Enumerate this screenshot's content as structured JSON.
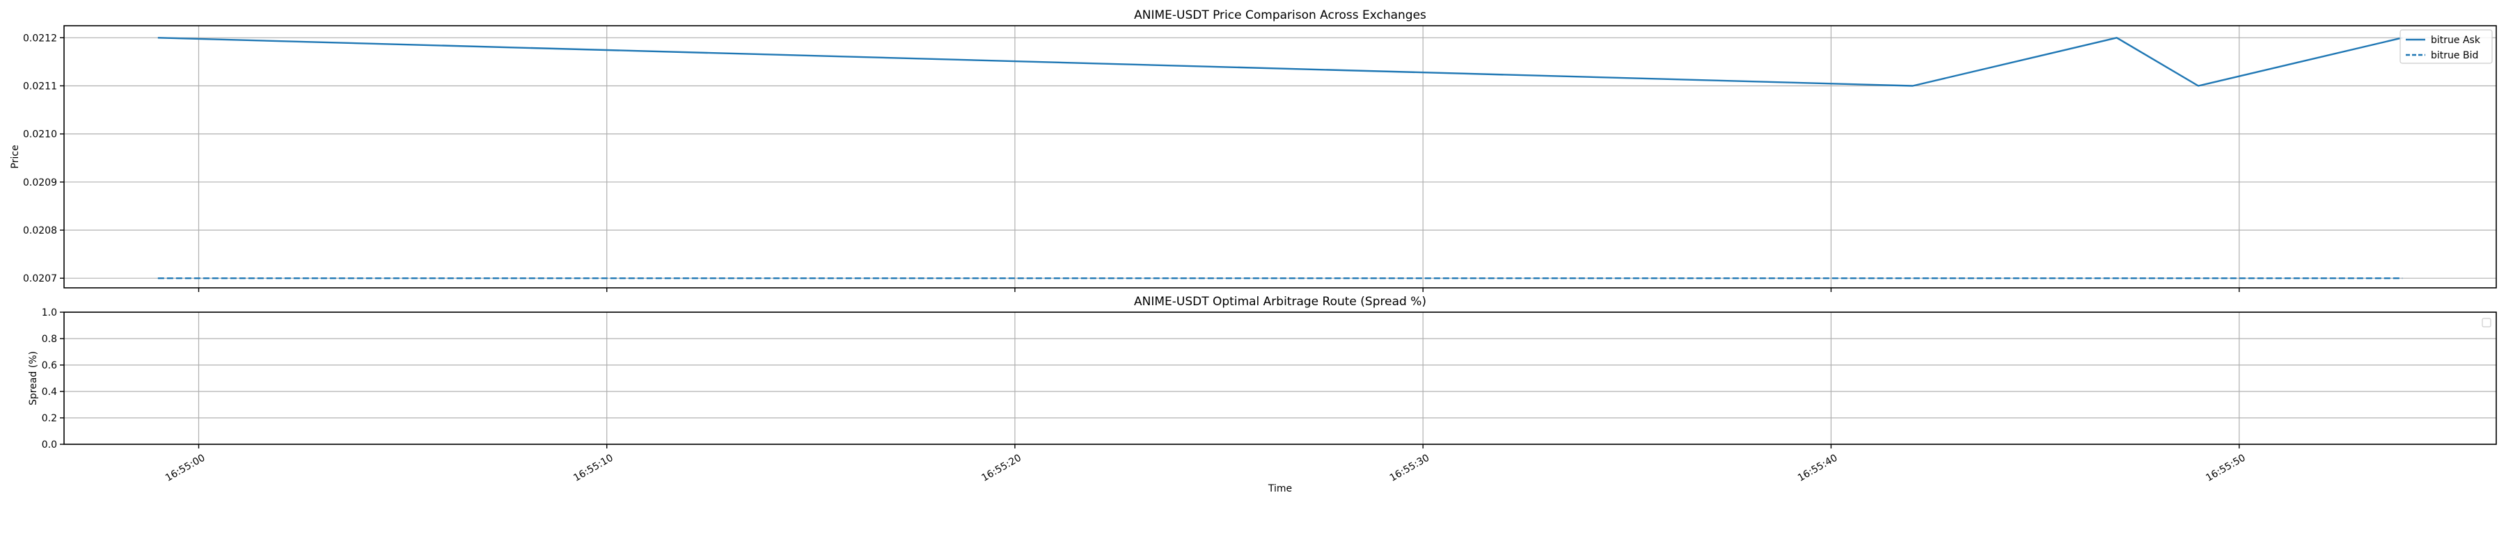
{
  "chart_data": [
    {
      "type": "line",
      "title": "ANIME-USDT Price Comparison Across Exchanges",
      "xlabel": "",
      "ylabel": "Price",
      "ylim": [
        0.02068,
        0.021225
      ],
      "yticks": [
        0.0207,
        0.0208,
        0.0209,
        0.021,
        0.0211,
        0.0212
      ],
      "ytick_labels": [
        "0.0207",
        "0.0208",
        "0.0209",
        "0.0210",
        "0.0211",
        "0.0212"
      ],
      "grid": true,
      "legend_position": "top-right",
      "series": [
        {
          "name": "bitrue Ask",
          "style": "solid",
          "color": "#1f77b4",
          "x": [
            "16:54:59",
            "16:55:42",
            "16:55:47",
            "16:55:49",
            "16:55:54"
          ],
          "values": [
            0.0212,
            0.0211,
            0.0212,
            0.0211,
            0.0212
          ]
        },
        {
          "name": "bitrue Bid",
          "style": "dashed",
          "color": "#1f77b4",
          "x": [
            "16:54:59",
            "16:55:54"
          ],
          "values": [
            0.0207,
            0.0207
          ]
        }
      ]
    },
    {
      "type": "line",
      "title": "ANIME-USDT Optimal Arbitrage Route (Spread %)",
      "xlabel": "Time",
      "ylabel": "Spread (%)",
      "ylim": [
        0.0,
        1.0
      ],
      "yticks": [
        0.0,
        0.2,
        0.4,
        0.6,
        0.8,
        1.0
      ],
      "ytick_labels": [
        "0.0",
        "0.2",
        "0.4",
        "0.6",
        "0.8",
        "1.0"
      ],
      "grid": true,
      "legend_position": "top-right",
      "series": []
    }
  ],
  "shared_x": {
    "range": [
      "16:54:56.7",
      "16:55:56.3"
    ],
    "ticks": [
      "16:55:00",
      "16:55:10",
      "16:55:20",
      "16:55:30",
      "16:55:40",
      "16:55:50"
    ],
    "tick_labels": [
      "16:55:00",
      "16:55:10",
      "16:55:20",
      "16:55:30",
      "16:55:40",
      "16:55:50"
    ]
  }
}
